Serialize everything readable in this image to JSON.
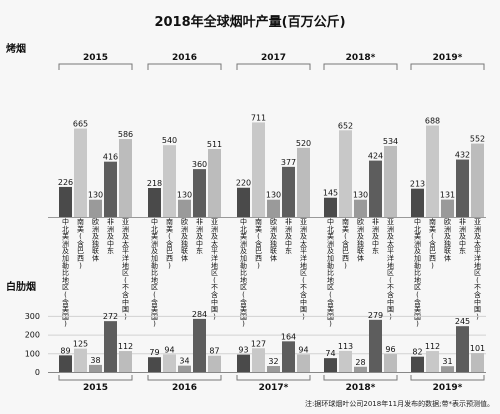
{
  "title": "2018年全球烟叶产量(百万公斤)",
  "footnote": "注:据环球烟叶公司2018年11月发布的数据;带*表示预测值。",
  "regions": [
    "中北美洲及加勒比地区(含美国)",
    "南美(含巴西)",
    "欧洲及独联体",
    "非洲及中东",
    "亚洲及太平洋地区(不含中国)"
  ],
  "colors": {
    "na": "#4a4a4a",
    "sa": "#c8c8c8",
    "eu": "#9a9a9a",
    "af": "#5d5d5d",
    "as": "#bcbcbc"
  },
  "chart_data": [
    {
      "type": "bar",
      "title": "烤烟",
      "groups": [
        "2015",
        "2016",
        "2017",
        "2018*",
        "2019*"
      ],
      "series": [
        {
          "name": "中北美洲及加勒比地区(含美国)",
          "values": [
            226,
            218,
            220,
            145,
            213
          ]
        },
        {
          "name": "南美(含巴西)",
          "values": [
            665,
            540,
            711,
            652,
            688
          ]
        },
        {
          "name": "欧洲及独联体",
          "values": [
            130,
            130,
            130,
            130,
            131
          ]
        },
        {
          "name": "非洲及中东",
          "values": [
            416,
            360,
            377,
            424,
            432
          ]
        },
        {
          "name": "亚洲及太平洋地区(不含中国)",
          "values": [
            586,
            511,
            520,
            534,
            552
          ]
        }
      ]
    },
    {
      "type": "bar",
      "title": "白肋烟",
      "groups": [
        "2015",
        "2016",
        "2017*",
        "2018*",
        "2019*"
      ],
      "yticks": [
        0,
        100,
        200,
        300
      ],
      "ylim": [
        0,
        300
      ],
      "series": [
        {
          "name": "中北美洲及加勒比地区(含美国)",
          "values": [
            89,
            79,
            93,
            74,
            82
          ]
        },
        {
          "name": "南美(含巴西)",
          "values": [
            125,
            94,
            127,
            113,
            112
          ]
        },
        {
          "name": "欧洲及独联体",
          "values": [
            38,
            34,
            32,
            28,
            31
          ]
        },
        {
          "name": "非洲及中东",
          "values": [
            272,
            284,
            164,
            279,
            245
          ]
        },
        {
          "name": "亚洲及太平洋地区(不含中国)",
          "values": [
            112,
            87,
            94,
            96,
            101
          ]
        }
      ]
    }
  ]
}
